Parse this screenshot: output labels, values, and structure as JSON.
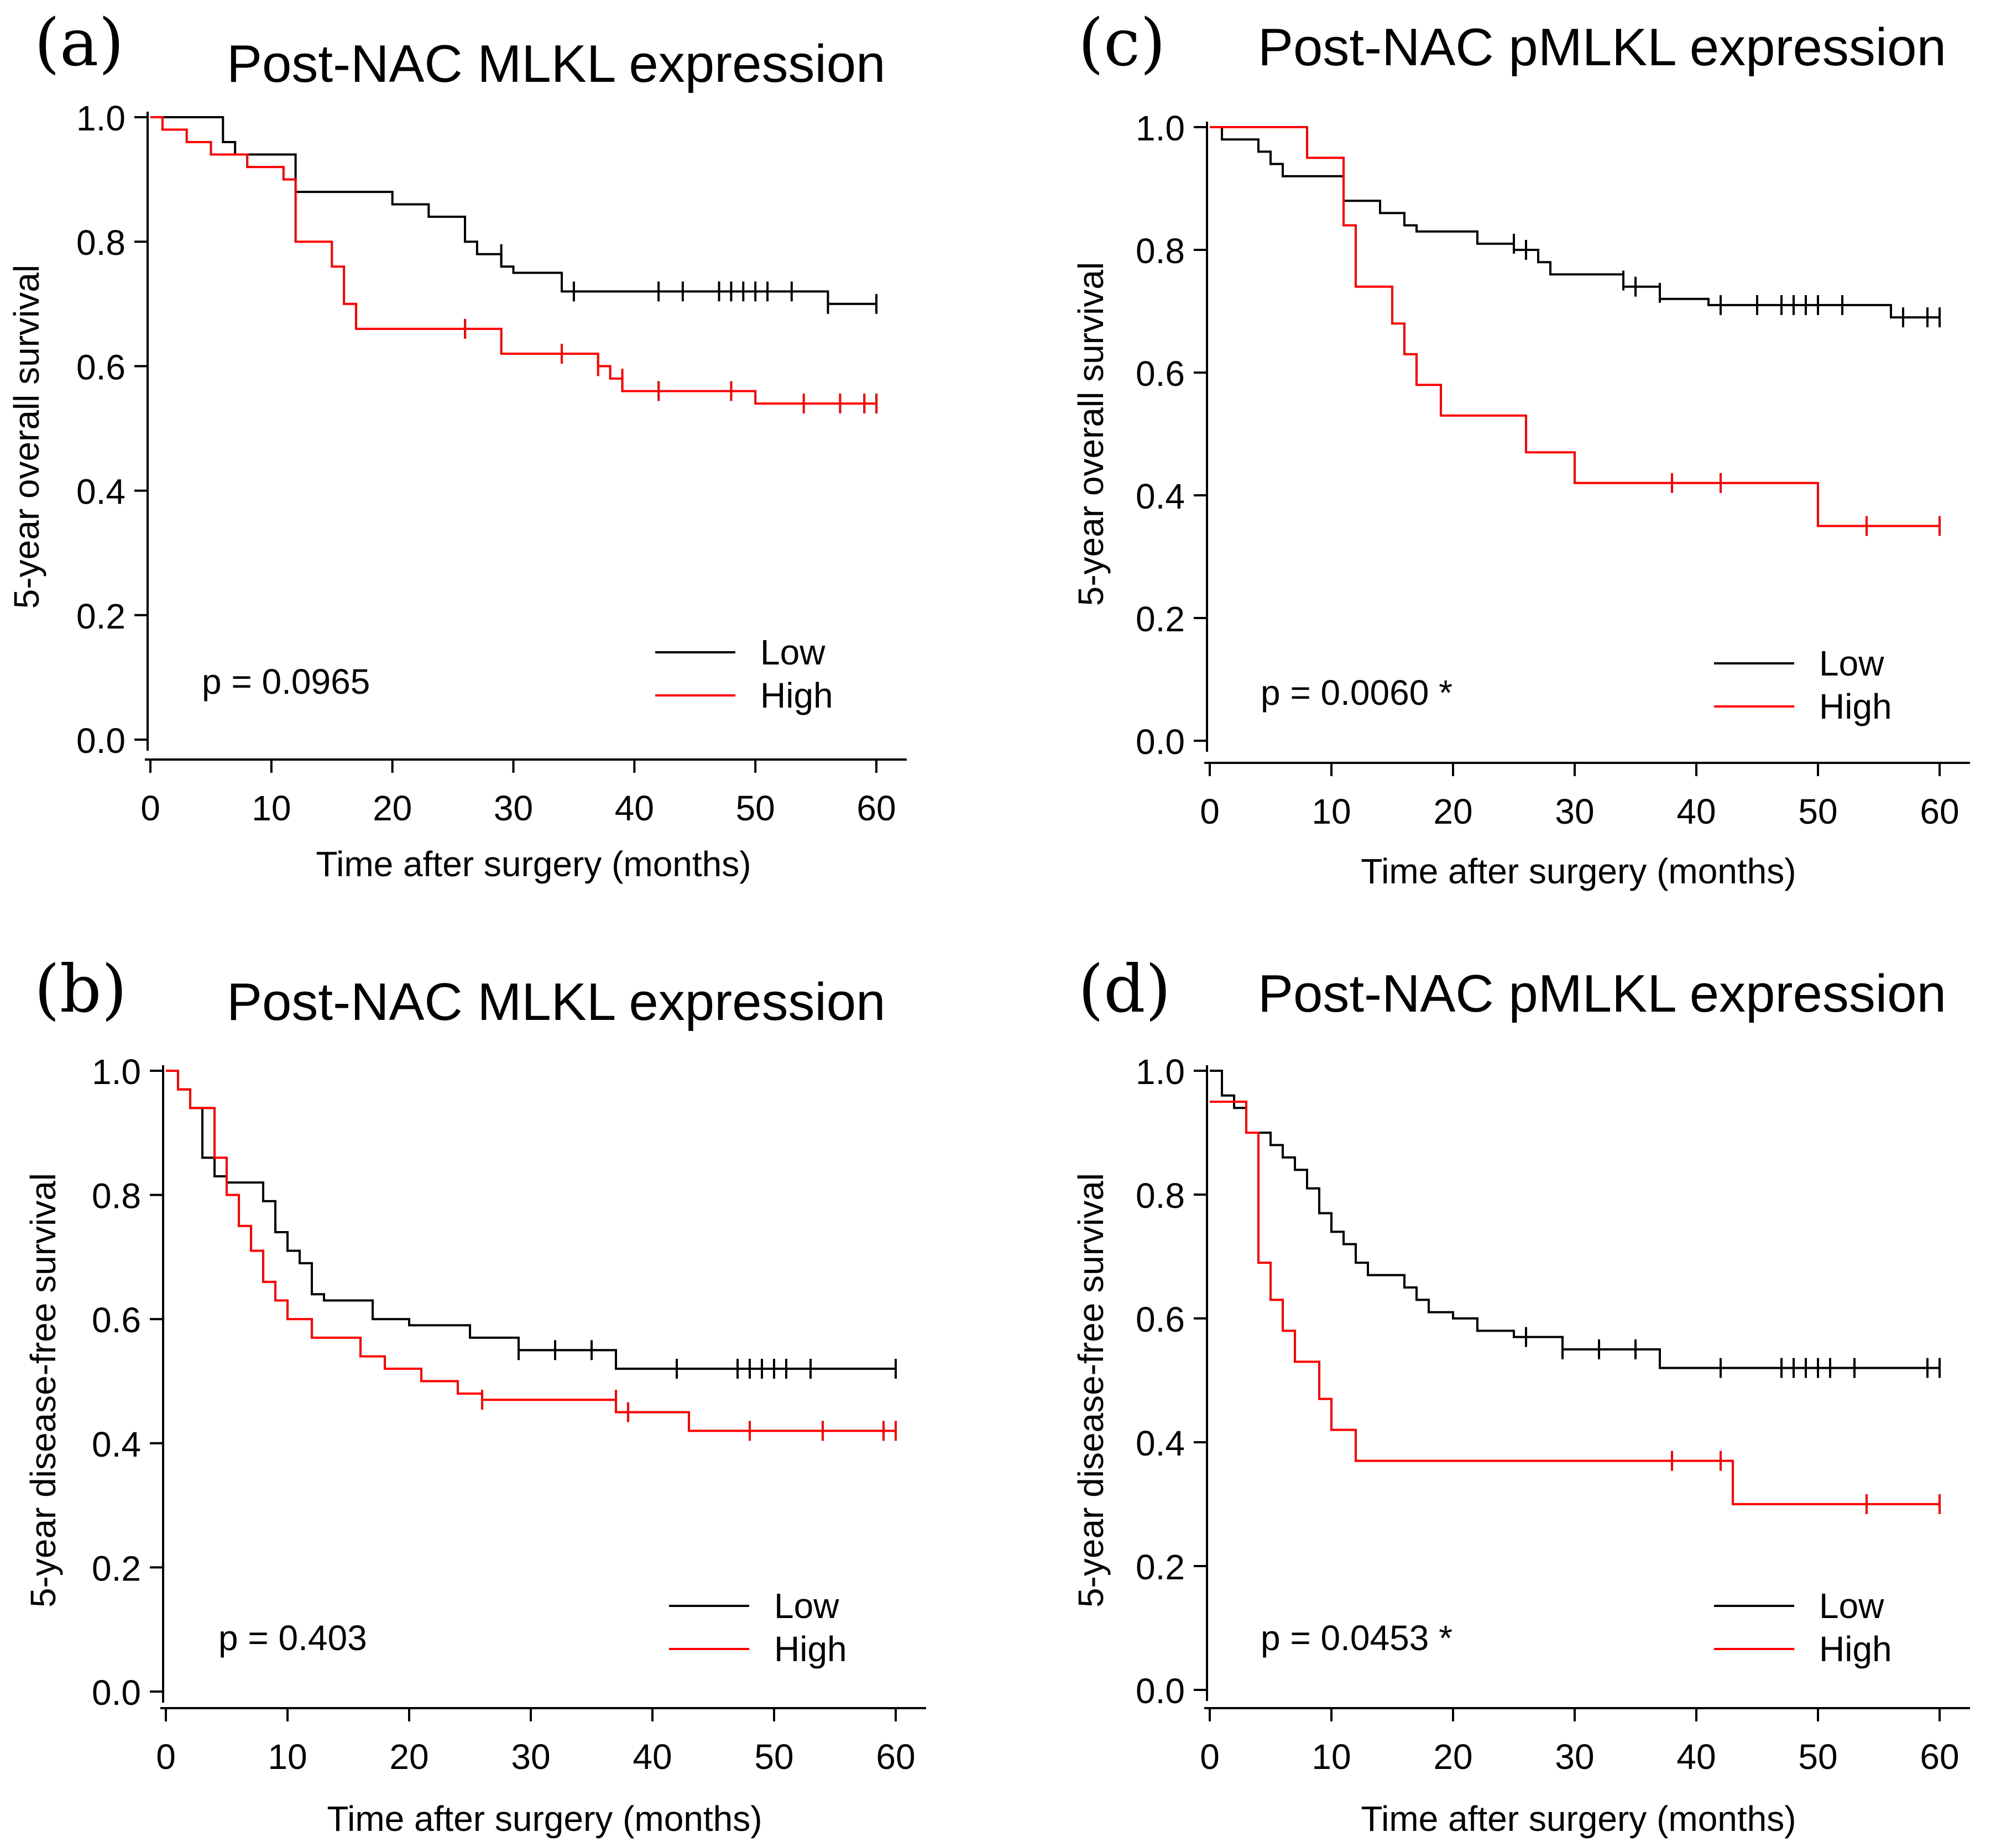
{
  "colors": {
    "low": "#000000",
    "high": "#ff0000"
  },
  "chart_data": [
    {
      "id": "a",
      "type": "line",
      "panel_letter": "(a)",
      "title": "Post-NAC MLKL expression",
      "xlabel": "Time after surgery (months)",
      "ylabel": "5-year overall survival",
      "xlim": [
        0,
        60
      ],
      "ylim": [
        0,
        1
      ],
      "xticks": [
        "0",
        "10",
        "20",
        "30",
        "40",
        "50",
        "60"
      ],
      "yticks": [
        "0.0",
        "0.2",
        "0.4",
        "0.6",
        "0.8",
        "1.0"
      ],
      "pvalue": "p = 0.0965",
      "legend": [
        "Low",
        "High"
      ],
      "series": [
        {
          "name": "Low",
          "color": "#000000",
          "steps": [
            [
              0,
              1.0
            ],
            [
              6,
              0.96
            ],
            [
              7,
              0.94
            ],
            [
              12,
              0.88
            ],
            [
              20,
              0.86
            ],
            [
              23,
              0.84
            ],
            [
              26,
              0.8
            ],
            [
              27,
              0.78
            ],
            [
              29,
              0.76
            ],
            [
              30,
              0.75
            ],
            [
              34,
              0.72
            ],
            [
              56,
              0.7
            ],
            [
              60,
              0.7
            ]
          ],
          "censored": [
            [
              29,
              0.78
            ],
            [
              35,
              0.72
            ],
            [
              42,
              0.72
            ],
            [
              44,
              0.72
            ],
            [
              47,
              0.72
            ],
            [
              48,
              0.72
            ],
            [
              49,
              0.72
            ],
            [
              50,
              0.72
            ],
            [
              51,
              0.72
            ],
            [
              53,
              0.72
            ],
            [
              56,
              0.7
            ],
            [
              60,
              0.7
            ]
          ]
        },
        {
          "name": "High",
          "color": "#ff0000",
          "steps": [
            [
              0,
              1.0
            ],
            [
              1,
              0.98
            ],
            [
              3,
              0.96
            ],
            [
              5,
              0.94
            ],
            [
              8,
              0.92
            ],
            [
              11,
              0.9
            ],
            [
              12,
              0.8
            ],
            [
              15,
              0.76
            ],
            [
              16,
              0.7
            ],
            [
              17,
              0.66
            ],
            [
              29,
              0.62
            ],
            [
              37,
              0.6
            ],
            [
              38,
              0.58
            ],
            [
              39,
              0.56
            ],
            [
              50,
              0.54
            ],
            [
              60,
              0.54
            ]
          ],
          "censored": [
            [
              26,
              0.66
            ],
            [
              34,
              0.62
            ],
            [
              37,
              0.6
            ],
            [
              39,
              0.58
            ],
            [
              42,
              0.56
            ],
            [
              48,
              0.56
            ],
            [
              54,
              0.54
            ],
            [
              57,
              0.54
            ],
            [
              59,
              0.54
            ],
            [
              60,
              0.54
            ]
          ]
        }
      ]
    },
    {
      "id": "b",
      "type": "line",
      "panel_letter": "(b)",
      "title": "Post-NAC MLKL expression",
      "xlabel": "Time after surgery (months)",
      "ylabel": "5-year disease-free survival",
      "xlim": [
        0,
        60
      ],
      "ylim": [
        0,
        1
      ],
      "xticks": [
        "0",
        "10",
        "20",
        "30",
        "40",
        "50",
        "60"
      ],
      "yticks": [
        "0.0",
        "0.2",
        "0.4",
        "0.6",
        "0.8",
        "1.0"
      ],
      "pvalue": "p = 0.403",
      "legend": [
        "Low",
        "High"
      ],
      "series": [
        {
          "name": "Low",
          "color": "#000000",
          "steps": [
            [
              0,
              1.0
            ],
            [
              1,
              0.97
            ],
            [
              2,
              0.94
            ],
            [
              3,
              0.86
            ],
            [
              4,
              0.83
            ],
            [
              5,
              0.82
            ],
            [
              8,
              0.79
            ],
            [
              9,
              0.74
            ],
            [
              10,
              0.71
            ],
            [
              11,
              0.69
            ],
            [
              12,
              0.64
            ],
            [
              13,
              0.63
            ],
            [
              17,
              0.6
            ],
            [
              20,
              0.59
            ],
            [
              25,
              0.57
            ],
            [
              29,
              0.55
            ],
            [
              37,
              0.52
            ],
            [
              60,
              0.52
            ]
          ],
          "censored": [
            [
              29,
              0.55
            ],
            [
              32,
              0.55
            ],
            [
              35,
              0.55
            ],
            [
              42,
              0.52
            ],
            [
              47,
              0.52
            ],
            [
              48,
              0.52
            ],
            [
              49,
              0.52
            ],
            [
              50,
              0.52
            ],
            [
              51,
              0.52
            ],
            [
              53,
              0.52
            ],
            [
              60,
              0.52
            ]
          ]
        },
        {
          "name": "High",
          "color": "#ff0000",
          "steps": [
            [
              0,
              1.0
            ],
            [
              1,
              0.97
            ],
            [
              2,
              0.94
            ],
            [
              4,
              0.86
            ],
            [
              5,
              0.8
            ],
            [
              6,
              0.75
            ],
            [
              7,
              0.71
            ],
            [
              8,
              0.66
            ],
            [
              9,
              0.63
            ],
            [
              10,
              0.6
            ],
            [
              12,
              0.57
            ],
            [
              16,
              0.54
            ],
            [
              18,
              0.52
            ],
            [
              21,
              0.5
            ],
            [
              24,
              0.48
            ],
            [
              26,
              0.47
            ],
            [
              37,
              0.45
            ],
            [
              43,
              0.42
            ],
            [
              60,
              0.42
            ]
          ],
          "censored": [
            [
              26,
              0.47
            ],
            [
              37,
              0.47
            ],
            [
              38,
              0.45
            ],
            [
              48,
              0.42
            ],
            [
              54,
              0.42
            ],
            [
              59,
              0.42
            ],
            [
              60,
              0.42
            ]
          ]
        }
      ]
    },
    {
      "id": "c",
      "type": "line",
      "panel_letter": "(c)",
      "title": "Post-NAC pMLKL expression",
      "xlabel": "Time after surgery (months)",
      "ylabel": "5-year overall survival",
      "xlim": [
        0,
        60
      ],
      "ylim": [
        0,
        1
      ],
      "xticks": [
        "0",
        "10",
        "20",
        "30",
        "40",
        "50",
        "60"
      ],
      "yticks": [
        "0.0",
        "0.2",
        "0.4",
        "0.6",
        "0.8",
        "1.0"
      ],
      "pvalue": "p = 0.0060 *",
      "legend": [
        "Low",
        "High"
      ],
      "series": [
        {
          "name": "Low",
          "color": "#000000",
          "steps": [
            [
              0,
              1.0
            ],
            [
              1,
              0.98
            ],
            [
              4,
              0.96
            ],
            [
              5,
              0.94
            ],
            [
              6,
              0.92
            ],
            [
              11,
              0.88
            ],
            [
              14,
              0.86
            ],
            [
              16,
              0.84
            ],
            [
              17,
              0.83
            ],
            [
              22,
              0.81
            ],
            [
              25,
              0.8
            ],
            [
              27,
              0.78
            ],
            [
              28,
              0.76
            ],
            [
              34,
              0.74
            ],
            [
              37,
              0.72
            ],
            [
              41,
              0.71
            ],
            [
              56,
              0.69
            ],
            [
              60,
              0.69
            ]
          ],
          "censored": [
            [
              25,
              0.81
            ],
            [
              26,
              0.8
            ],
            [
              34,
              0.75
            ],
            [
              35,
              0.74
            ],
            [
              37,
              0.73
            ],
            [
              42,
              0.71
            ],
            [
              45,
              0.71
            ],
            [
              47,
              0.71
            ],
            [
              48,
              0.71
            ],
            [
              49,
              0.71
            ],
            [
              50,
              0.71
            ],
            [
              52,
              0.71
            ],
            [
              57,
              0.69
            ],
            [
              59,
              0.69
            ],
            [
              60,
              0.69
            ]
          ]
        },
        {
          "name": "High",
          "color": "#ff0000",
          "steps": [
            [
              0,
              1.0
            ],
            [
              8,
              0.95
            ],
            [
              11,
              0.84
            ],
            [
              12,
              0.74
            ],
            [
              15,
              0.68
            ],
            [
              16,
              0.63
            ],
            [
              17,
              0.58
            ],
            [
              19,
              0.53
            ],
            [
              26,
              0.47
            ],
            [
              30,
              0.42
            ],
            [
              50,
              0.35
            ],
            [
              60,
              0.35
            ]
          ],
          "censored": [
            [
              38,
              0.42
            ],
            [
              42,
              0.42
            ],
            [
              54,
              0.35
            ],
            [
              60,
              0.35
            ]
          ]
        }
      ]
    },
    {
      "id": "d",
      "type": "line",
      "panel_letter": "(d)",
      "title": "Post-NAC pMLKL expression",
      "xlabel": "Time after surgery (months)",
      "ylabel": "5-year disease-free survival",
      "xlim": [
        0,
        60
      ],
      "ylim": [
        0,
        1
      ],
      "xticks": [
        "0",
        "10",
        "20",
        "30",
        "40",
        "50",
        "60"
      ],
      "yticks": [
        "0.0",
        "0.2",
        "0.4",
        "0.6",
        "0.8",
        "1.0"
      ],
      "pvalue": "p = 0.0453 *",
      "legend": [
        "Low",
        "High"
      ],
      "series": [
        {
          "name": "Low",
          "color": "#000000",
          "steps": [
            [
              0,
              1.0
            ],
            [
              1,
              0.96
            ],
            [
              2,
              0.94
            ],
            [
              3,
              0.9
            ],
            [
              5,
              0.88
            ],
            [
              6,
              0.86
            ],
            [
              7,
              0.84
            ],
            [
              8,
              0.81
            ],
            [
              9,
              0.77
            ],
            [
              10,
              0.74
            ],
            [
              11,
              0.72
            ],
            [
              12,
              0.69
            ],
            [
              13,
              0.67
            ],
            [
              16,
              0.65
            ],
            [
              17,
              0.63
            ],
            [
              18,
              0.61
            ],
            [
              20,
              0.6
            ],
            [
              22,
              0.58
            ],
            [
              25,
              0.57
            ],
            [
              29,
              0.55
            ],
            [
              37,
              0.52
            ],
            [
              60,
              0.52
            ]
          ],
          "censored": [
            [
              26,
              0.57
            ],
            [
              29,
              0.55
            ],
            [
              32,
              0.55
            ],
            [
              35,
              0.55
            ],
            [
              42,
              0.52
            ],
            [
              47,
              0.52
            ],
            [
              48,
              0.52
            ],
            [
              49,
              0.52
            ],
            [
              50,
              0.52
            ],
            [
              51,
              0.52
            ],
            [
              53,
              0.52
            ],
            [
              59,
              0.52
            ],
            [
              60,
              0.52
            ]
          ]
        },
        {
          "name": "High",
          "color": "#ff0000",
          "steps": [
            [
              0,
              0.95
            ],
            [
              3,
              0.9
            ],
            [
              4,
              0.69
            ],
            [
              5,
              0.63
            ],
            [
              6,
              0.58
            ],
            [
              7,
              0.53
            ],
            [
              9,
              0.47
            ],
            [
              10,
              0.42
            ],
            [
              12,
              0.37
            ],
            [
              43,
              0.3
            ],
            [
              60,
              0.3
            ]
          ],
          "censored": [
            [
              38,
              0.37
            ],
            [
              42,
              0.37
            ],
            [
              54,
              0.3
            ],
            [
              60,
              0.3
            ]
          ]
        }
      ]
    }
  ]
}
